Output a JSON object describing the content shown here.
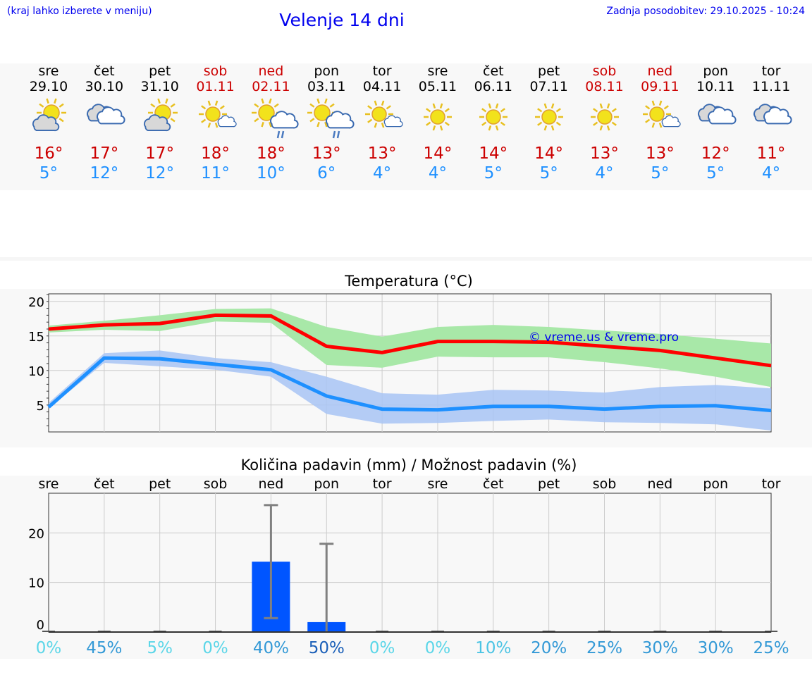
{
  "header": {
    "hint": "(kraj lahko izberete v meniju)",
    "title": "Velenje 14 dni",
    "updated": "Zadnja posodobitev: 29.10.2025 - 10:24"
  },
  "days": [
    {
      "day": "sre",
      "date": "29.10",
      "weekend": false,
      "icon": "partly-cloudy",
      "max": "16°",
      "min": "5°"
    },
    {
      "day": "čet",
      "date": "30.10",
      "weekend": false,
      "icon": "cloudy",
      "max": "17°",
      "min": "12°"
    },
    {
      "day": "pet",
      "date": "31.10",
      "weekend": false,
      "icon": "partly-cloudy",
      "max": "17°",
      "min": "12°"
    },
    {
      "day": "sob",
      "date": "01.11",
      "weekend": true,
      "icon": "mostly-sunny",
      "max": "18°",
      "min": "11°"
    },
    {
      "day": "ned",
      "date": "02.11",
      "weekend": true,
      "icon": "sun-rain",
      "max": "18°",
      "min": "10°"
    },
    {
      "day": "pon",
      "date": "03.11",
      "weekend": false,
      "icon": "sun-rain",
      "max": "13°",
      "min": "6°"
    },
    {
      "day": "tor",
      "date": "04.11",
      "weekend": false,
      "icon": "mostly-sunny",
      "max": "13°",
      "min": "4°"
    },
    {
      "day": "sre",
      "date": "05.11",
      "weekend": false,
      "icon": "sunny",
      "max": "14°",
      "min": "4°"
    },
    {
      "day": "čet",
      "date": "06.11",
      "weekend": false,
      "icon": "sunny",
      "max": "14°",
      "min": "5°"
    },
    {
      "day": "pet",
      "date": "07.11",
      "weekend": false,
      "icon": "sunny",
      "max": "14°",
      "min": "5°"
    },
    {
      "day": "sob",
      "date": "08.11",
      "weekend": true,
      "icon": "sunny",
      "max": "13°",
      "min": "4°"
    },
    {
      "day": "ned",
      "date": "09.11",
      "weekend": true,
      "icon": "mostly-sunny",
      "max": "13°",
      "min": "5°"
    },
    {
      "day": "pon",
      "date": "10.11",
      "weekend": false,
      "icon": "cloudy",
      "max": "12°",
      "min": "5°"
    },
    {
      "day": "tor",
      "date": "11.11",
      "weekend": false,
      "icon": "cloudy",
      "max": "11°",
      "min": "4°"
    }
  ],
  "colors": {
    "max": "#ff0000",
    "min": "#1e90ff",
    "max_band": "#a8e8a8",
    "min_band": "#a8c4f4",
    "bar": "#0055ff",
    "err": "#808080"
  },
  "chart_data": [
    {
      "type": "line",
      "title": "Temperatura (°C)",
      "watermark": "© vreme.us & vreme.pro",
      "ylim": [
        1.1,
        21.1
      ],
      "yticks": [
        5,
        10,
        15,
        20
      ],
      "grid": true,
      "x": [
        "29.10",
        "30.10",
        "31.10",
        "01.11",
        "02.11",
        "03.11",
        "04.11",
        "05.11",
        "06.11",
        "07.11",
        "08.11",
        "09.11",
        "10.11",
        "11.11"
      ],
      "series": [
        {
          "name": "max",
          "values": [
            16.0,
            16.6,
            16.8,
            18.0,
            17.9,
            13.5,
            12.6,
            14.2,
            14.2,
            14.1,
            13.5,
            12.9,
            11.8,
            10.7
          ],
          "band_high": [
            16.5,
            17.2,
            18.0,
            18.9,
            19.0,
            16.3,
            14.9,
            16.3,
            16.6,
            16.3,
            15.8,
            15.3,
            14.6,
            13.9
          ],
          "band_low": [
            15.5,
            15.9,
            15.7,
            17.1,
            16.9,
            10.8,
            10.4,
            12.0,
            11.9,
            11.9,
            11.2,
            10.3,
            9.1,
            7.6
          ]
        },
        {
          "name": "min",
          "values": [
            4.7,
            11.8,
            11.7,
            10.9,
            10.1,
            6.3,
            4.4,
            4.3,
            4.8,
            4.8,
            4.4,
            4.8,
            4.9,
            4.2
          ],
          "band_high": [
            5.3,
            12.5,
            12.9,
            11.8,
            11.2,
            9.1,
            6.7,
            6.5,
            7.2,
            7.1,
            6.8,
            7.6,
            7.9,
            7.4
          ],
          "band_low": [
            4.5,
            11.1,
            10.6,
            10.1,
            9.1,
            3.7,
            2.3,
            2.4,
            2.7,
            2.9,
            2.5,
            2.4,
            2.2,
            1.3
          ]
        }
      ]
    },
    {
      "type": "bar",
      "title": "Količina padavin (mm) / Možnost padavin (%)",
      "ylim": [
        0,
        28
      ],
      "yticks": [
        0,
        10,
        20
      ],
      "grid": true,
      "categories": [
        "sre",
        "čet",
        "pet",
        "sob",
        "ned",
        "pon",
        "tor",
        "sre",
        "čet",
        "pet",
        "sob",
        "ned",
        "pon",
        "tor"
      ],
      "values": [
        0,
        0,
        0,
        0,
        14.2,
        2.0,
        0,
        0,
        0,
        0,
        0,
        0,
        0,
        0
      ],
      "err_low": [
        0,
        0,
        0,
        0,
        2.8,
        0,
        0,
        0,
        0,
        0,
        0,
        0,
        0,
        0
      ],
      "err_high": [
        0,
        0,
        0,
        0,
        25.6,
        17.8,
        0,
        0,
        0,
        0,
        0,
        0,
        0,
        0
      ],
      "probability": [
        "0%",
        "45%",
        "5%",
        "0%",
        "40%",
        "50%",
        "0%",
        "0%",
        "10%",
        "20%",
        "25%",
        "30%",
        "30%",
        "25%"
      ]
    }
  ]
}
